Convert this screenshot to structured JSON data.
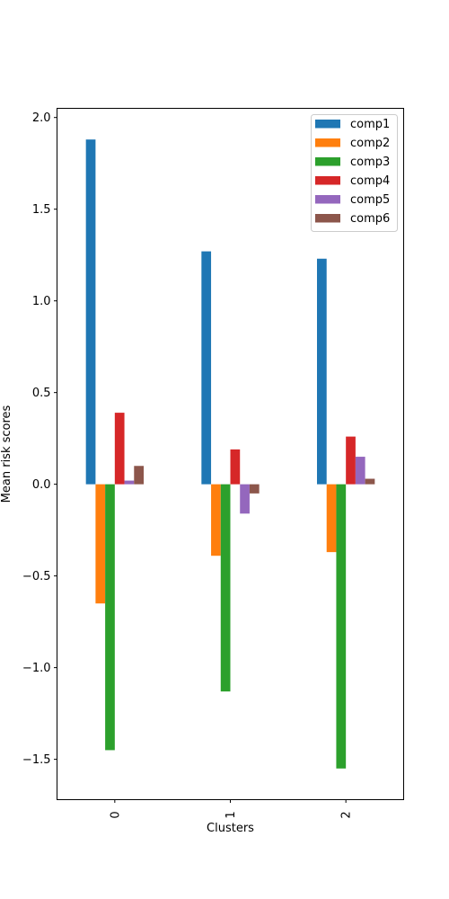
{
  "chart_data": {
    "type": "bar",
    "categories": [
      "0",
      "1",
      "2"
    ],
    "xlabel": "Clusters",
    "ylabel": "Mean risk scores",
    "ylim": [
      -1.72,
      2.05
    ],
    "yticks": [
      -1.5,
      -1.0,
      -0.5,
      0.0,
      0.5,
      1.0,
      1.5,
      2.0
    ],
    "ytick_labels": [
      "−1.5",
      "−1.0",
      "−0.5",
      "0.0",
      "0.5",
      "1.0",
      "1.5",
      "2.0"
    ],
    "legend_position": "top-right",
    "grid": false,
    "series": [
      {
        "name": "comp1",
        "color": "#1f77b4",
        "values": [
          1.88,
          1.27,
          1.23
        ]
      },
      {
        "name": "comp2",
        "color": "#ff7f0e",
        "values": [
          -0.65,
          -0.39,
          -0.37
        ]
      },
      {
        "name": "comp3",
        "color": "#2ca02c",
        "values": [
          -1.45,
          -1.13,
          -1.55
        ]
      },
      {
        "name": "comp4",
        "color": "#d62728",
        "values": [
          0.39,
          0.19,
          0.26
        ]
      },
      {
        "name": "comp5",
        "color": "#9467bd",
        "values": [
          0.02,
          -0.16,
          0.15
        ]
      },
      {
        "name": "comp6",
        "color": "#8c564b",
        "values": [
          0.1,
          -0.05,
          0.03
        ]
      }
    ]
  }
}
